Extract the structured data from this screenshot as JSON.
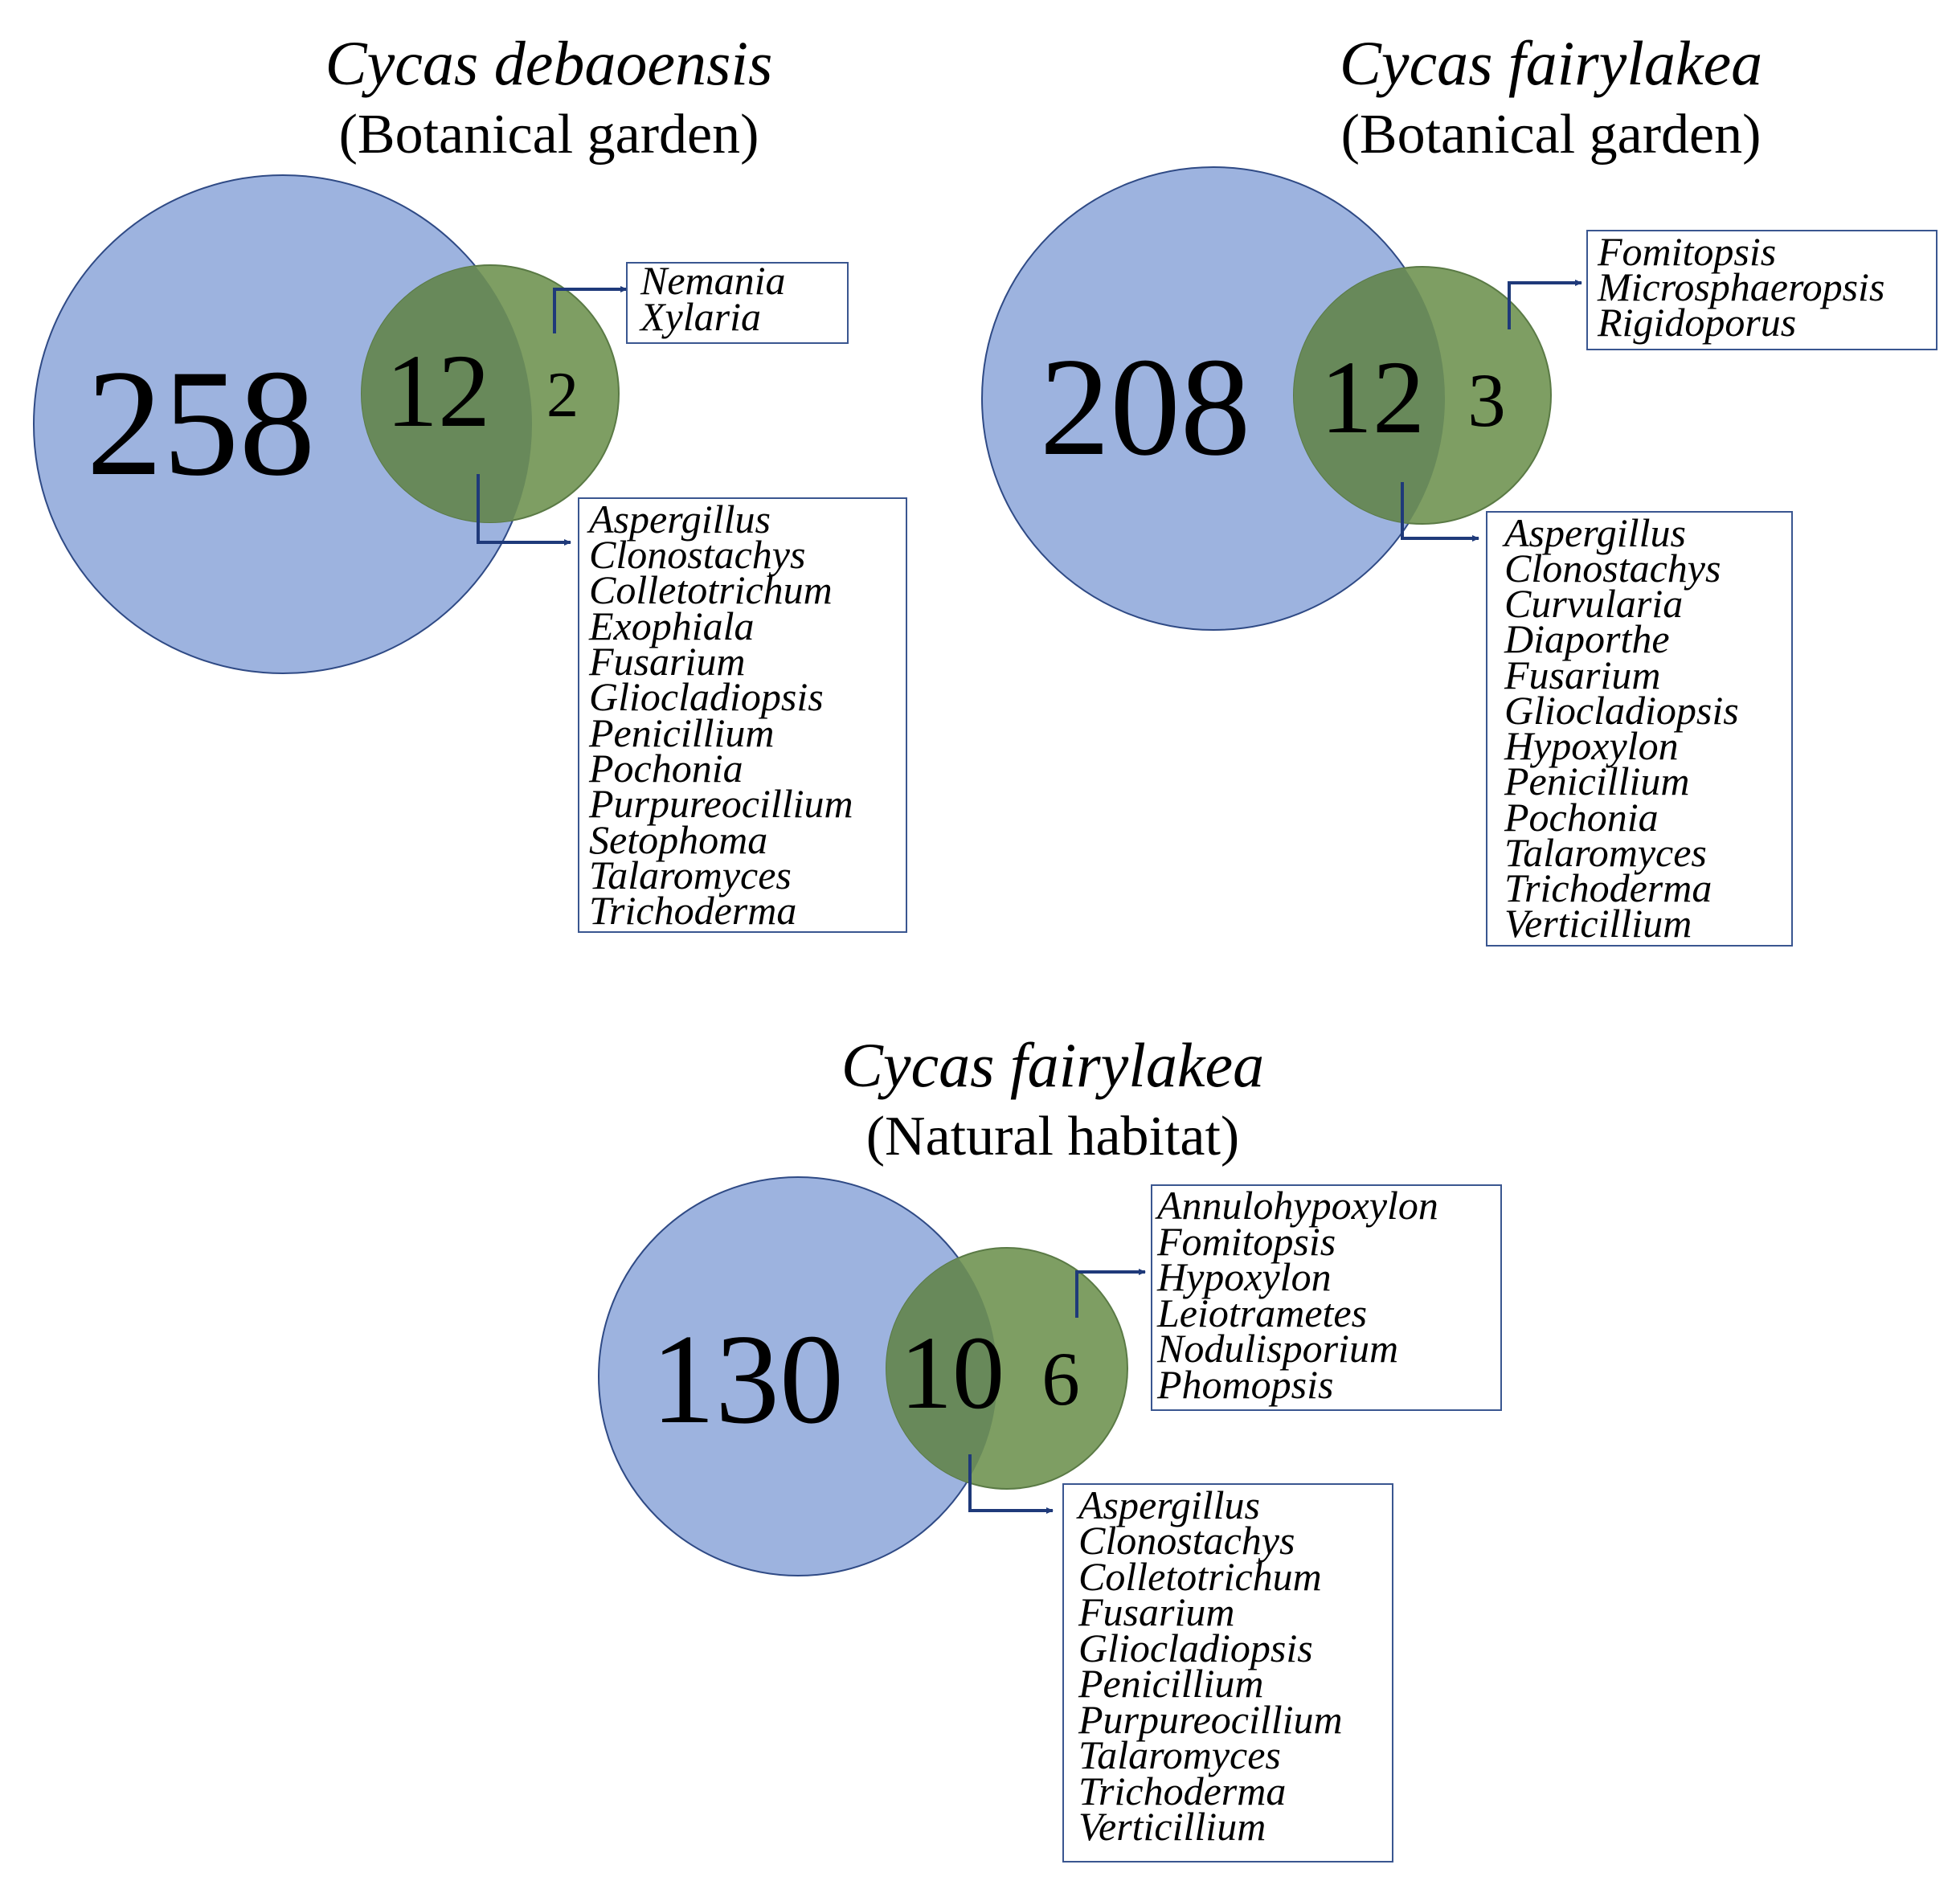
{
  "colors": {
    "blue_circle": "#9db3df",
    "green_circle": "#7e9e63",
    "overlap": "#68895a",
    "arrow": "#1f3a7a",
    "box_border": "#3a5690",
    "text": "#000000"
  },
  "panels": [
    {
      "species": "Cycas debaoensis",
      "habitat": "(Botanical garden)",
      "left_count": "258",
      "shared_count": "12",
      "right_count": "2",
      "right_only_genera": [
        "Nemania",
        "Xylaria"
      ],
      "shared_genera": [
        "Aspergillus",
        "Clonostachys",
        "Colletotrichum",
        "Exophiala",
        "Fusarium",
        "Gliocladiopsis",
        "Penicillium",
        "Pochonia",
        "Purpureocillium",
        "Setophoma",
        "Talaromyces",
        "Trichoderma"
      ]
    },
    {
      "species": "Cycas fairylakea",
      "habitat": "(Botanical garden)",
      "left_count": "208",
      "shared_count": "12",
      "right_count": "3",
      "right_only_genera": [
        "Fomitopsis",
        "Microsphaeropsis",
        "Rigidoporus"
      ],
      "shared_genera": [
        "Aspergillus",
        "Clonostachys",
        "Curvularia",
        "Diaporthe",
        "Fusarium",
        "Gliocladiopsis",
        "Hypoxylon",
        "Penicillium",
        "Pochonia",
        "Talaromyces",
        "Trichoderma",
        "Verticillium"
      ]
    },
    {
      "species": "Cycas fairylakea",
      "habitat": "(Natural habitat)",
      "left_count": "130",
      "shared_count": "10",
      "right_count": "6",
      "right_only_genera": [
        "Annulohypoxylon",
        "Fomitopsis",
        "Hypoxylon",
        "Leiotrametes",
        "Nodulisporium",
        "Phomopsis"
      ],
      "shared_genera": [
        "Aspergillus",
        "Clonostachys",
        "Colletotrichum",
        "Fusarium",
        "Gliocladiopsis",
        "Penicillium",
        "Purpureocillium",
        "Talaromyces",
        "Trichoderma",
        "Verticillium"
      ]
    }
  ]
}
